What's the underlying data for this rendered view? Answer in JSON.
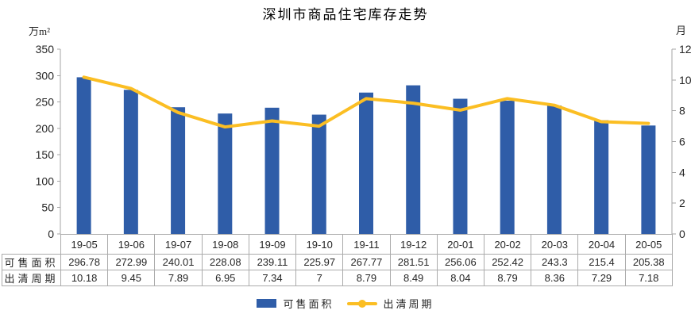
{
  "chart_data": {
    "type": "bar",
    "combo": "bar+line-dual-axis",
    "title": "深圳市商品住宅库存走势",
    "categories": [
      "19-05",
      "19-06",
      "19-07",
      "19-08",
      "19-09",
      "19-10",
      "19-11",
      "19-12",
      "20-01",
      "20-02",
      "20-03",
      "20-04",
      "20-05"
    ],
    "series": [
      {
        "name": "可售面积",
        "type": "bar",
        "axis": "left",
        "color": "#2F5DA8",
        "values": [
          296.78,
          272.99,
          240.01,
          228.08,
          239.11,
          225.97,
          267.77,
          281.51,
          256.06,
          252.42,
          243.3,
          215.4,
          205.38
        ]
      },
      {
        "name": "出清周期",
        "type": "line",
        "axis": "right",
        "color": "#FBBE23",
        "values": [
          10.18,
          9.45,
          7.89,
          6.95,
          7.34,
          7,
          8.79,
          8.49,
          8.04,
          8.79,
          8.36,
          7.29,
          7.18
        ]
      }
    ],
    "left_axis": {
      "unit": "万m²",
      "min": 0,
      "max": 350,
      "step": 50,
      "ticks": [
        "0",
        "50",
        "100",
        "150",
        "200",
        "250",
        "300",
        "350"
      ]
    },
    "right_axis": {
      "unit": "月",
      "min": 0,
      "max": 12,
      "step": 2,
      "ticks": [
        "0",
        "2",
        "4",
        "6",
        "8",
        "10",
        "12"
      ]
    },
    "grid": false,
    "legend_position": "bottom",
    "data_table": {
      "rows": [
        {
          "header": "可售面积",
          "values": [
            "296.78",
            "272.99",
            "240.01",
            "228.08",
            "239.11",
            "225.97",
            "267.77",
            "281.51",
            "256.06",
            "252.42",
            "243.3",
            "215.4",
            "205.38"
          ]
        },
        {
          "header": "出清周期",
          "values": [
            "10.18",
            "9.45",
            "7.89",
            "6.95",
            "7.34",
            "7",
            "8.79",
            "8.49",
            "8.04",
            "8.79",
            "8.36",
            "7.29",
            "7.18"
          ]
        }
      ]
    }
  },
  "colors": {
    "bar": "#2F5DA8",
    "line": "#FBBE23",
    "axis": "#A6A6A6",
    "table_border": "#ABABAB",
    "text": "#262626"
  }
}
